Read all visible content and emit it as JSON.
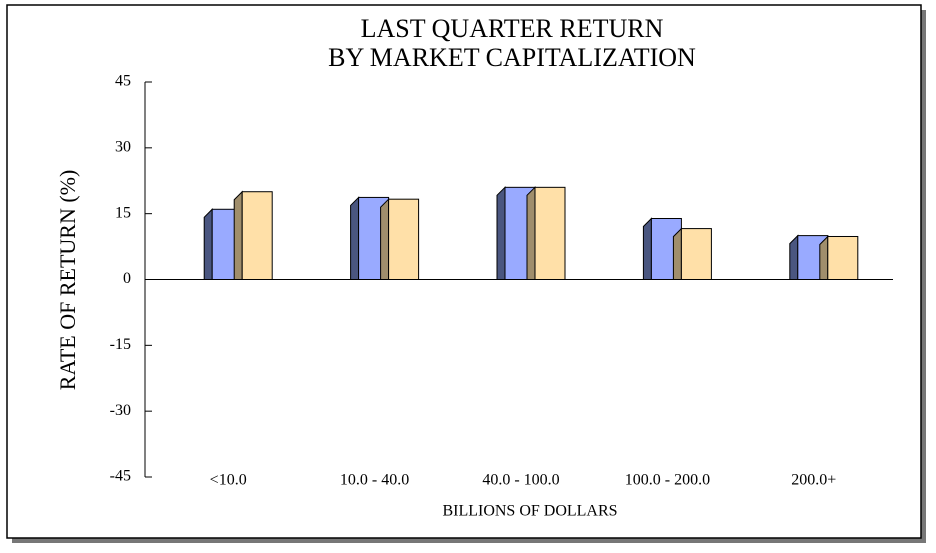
{
  "chart_data": {
    "type": "bar",
    "title": [
      "LAST QUARTER RETURN",
      "BY MARKET CAPITALIZATION"
    ],
    "x_label": "BILLIONS OF DOLLARS",
    "y_label": "RATE OF RETURN (%)",
    "categories": [
      "<10.0",
      "10.0 - 40.0",
      "40.0 - 100.0",
      "100.0 - 200.0",
      "200.0+"
    ],
    "series": [
      {
        "color": "#99aaff",
        "side_color": "#4a5680",
        "values": [
          16,
          18.7,
          21,
          13.9,
          10
        ]
      },
      {
        "color": "#ffe0a8",
        "side_color": "#a08e6c",
        "values": [
          20,
          18.3,
          21,
          11.6,
          9.8
        ]
      }
    ],
    "ylim": [
      -45,
      45
    ],
    "yticks": [
      -45,
      -30,
      -15,
      0,
      15,
      30,
      45
    ]
  }
}
